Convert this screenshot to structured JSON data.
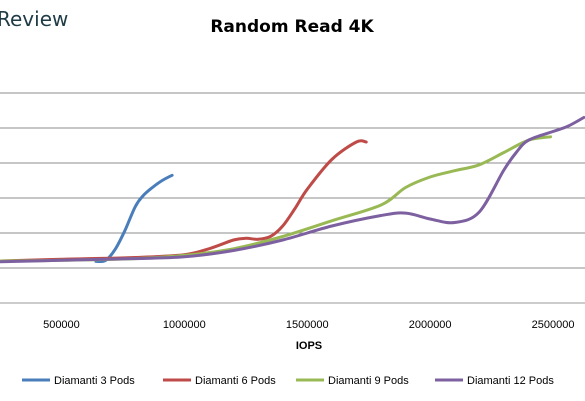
{
  "brand": {
    "text": "Review"
  },
  "chart_data": {
    "type": "line",
    "title": "Random Read 4K",
    "xlabel": "IOPS",
    "ylabel": "",
    "xlim": [
      250000,
      2630000
    ],
    "ylim": [
      0,
      7
    ],
    "x_ticks": [
      500000,
      1000000,
      1500000,
      2000000,
      2500000
    ],
    "x_tick_labels": [
      "500000",
      "1000000",
      "1500000",
      "2000000",
      "2500000"
    ],
    "y_gridlines": [
      1,
      2,
      3,
      4,
      5,
      6
    ],
    "grid": true,
    "legend_position": "bottom",
    "series": [
      {
        "name": "Diamanti 3 Pods",
        "color": "#4a7ebb",
        "points": [
          [
            640000,
            1.19
          ],
          [
            680000,
            1.22
          ],
          [
            720000,
            1.55
          ],
          [
            760000,
            2.1
          ],
          [
            800000,
            2.75
          ],
          [
            830000,
            3.05
          ],
          [
            870000,
            3.3
          ],
          [
            910000,
            3.5
          ],
          [
            950000,
            3.65
          ]
        ]
      },
      {
        "name": "Diamanti 6 Pods",
        "color": "#be4b48",
        "points": [
          [
            250000,
            1.2
          ],
          [
            500000,
            1.25
          ],
          [
            800000,
            1.3
          ],
          [
            1000000,
            1.38
          ],
          [
            1100000,
            1.55
          ],
          [
            1200000,
            1.8
          ],
          [
            1250000,
            1.85
          ],
          [
            1300000,
            1.82
          ],
          [
            1350000,
            1.9
          ],
          [
            1400000,
            2.2
          ],
          [
            1450000,
            2.7
          ],
          [
            1500000,
            3.25
          ],
          [
            1600000,
            4.1
          ],
          [
            1700000,
            4.6
          ],
          [
            1740000,
            4.6
          ]
        ]
      },
      {
        "name": "Diamanti 9 Pods",
        "color": "#98b954",
        "points": [
          [
            250000,
            1.2
          ],
          [
            500000,
            1.22
          ],
          [
            800000,
            1.27
          ],
          [
            1000000,
            1.36
          ],
          [
            1200000,
            1.55
          ],
          [
            1400000,
            1.9
          ],
          [
            1600000,
            2.35
          ],
          [
            1800000,
            2.8
          ],
          [
            1900000,
            3.3
          ],
          [
            2000000,
            3.6
          ],
          [
            2100000,
            3.78
          ],
          [
            2200000,
            3.95
          ],
          [
            2300000,
            4.3
          ],
          [
            2400000,
            4.65
          ],
          [
            2490000,
            4.75
          ]
        ]
      },
      {
        "name": "Diamanti 12 Pods",
        "color": "#7d60a0",
        "points": [
          [
            250000,
            1.18
          ],
          [
            500000,
            1.22
          ],
          [
            800000,
            1.27
          ],
          [
            1000000,
            1.32
          ],
          [
            1200000,
            1.5
          ],
          [
            1400000,
            1.8
          ],
          [
            1600000,
            2.2
          ],
          [
            1800000,
            2.5
          ],
          [
            1900000,
            2.57
          ],
          [
            2000000,
            2.4
          ],
          [
            2100000,
            2.3
          ],
          [
            2200000,
            2.6
          ],
          [
            2300000,
            3.8
          ],
          [
            2350000,
            4.3
          ],
          [
            2400000,
            4.65
          ],
          [
            2500000,
            4.9
          ],
          [
            2560000,
            5.05
          ],
          [
            2625000,
            5.3
          ]
        ]
      }
    ]
  }
}
